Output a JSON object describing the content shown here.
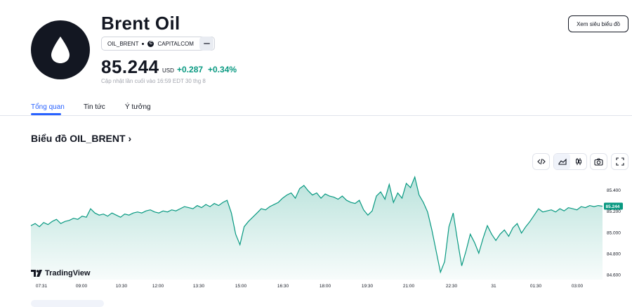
{
  "header": {
    "title": "Brent Oil",
    "symbol": "OIL_BRENT",
    "exchange": "CAPITALCOM",
    "price": "85.244",
    "currency": "USD",
    "change": "+0.287",
    "change_percent": "+0.34%",
    "updated": "Cập nhật lần cuối vào 16:59 EDT 30 thg 8",
    "view_button": "Xem siêu biểu đồ",
    "logo_icon": "oil-drop-icon"
  },
  "tabs": [
    {
      "label": "Tổng quan",
      "active": true
    },
    {
      "label": "Tin tức",
      "active": false
    },
    {
      "label": "Ý tưởng",
      "active": false
    }
  ],
  "chart_section": {
    "title": "Biểu đồ OIL_BRENT",
    "tools": [
      "embed-code-icon",
      "area-chart-icon",
      "candles-icon",
      "camera-icon",
      "fullscreen-icon"
    ],
    "brand": "TradingView"
  },
  "colors": {
    "accent": "#2962ff",
    "positive": "#089981",
    "line": "#089981"
  },
  "chart_data": {
    "type": "area",
    "x_ticks": [
      "07:31",
      "09:00",
      "10:30",
      "12:00",
      "13:30",
      "15:00",
      "16:30",
      "18:00",
      "19:30",
      "21:00",
      "22:30",
      "31",
      "01:30",
      "03:00"
    ],
    "y_ticks": [
      "85.400",
      "85.200",
      "85.000",
      "84.800",
      "84.600"
    ],
    "ylim": [
      84.55,
      85.5
    ],
    "last_label": "85.244",
    "series": [
      {
        "values": [
          85.06,
          85.08,
          85.05,
          85.09,
          85.07,
          85.1,
          85.12,
          85.08,
          85.1,
          85.11,
          85.13,
          85.12,
          85.15,
          85.14,
          85.22,
          85.18,
          85.16,
          85.17,
          85.15,
          85.18,
          85.16,
          85.14,
          85.17,
          85.16,
          85.18,
          85.19,
          85.18,
          85.2,
          85.21,
          85.19,
          85.18,
          85.2,
          85.19,
          85.21,
          85.2,
          85.22,
          85.24,
          85.23,
          85.22,
          85.25,
          85.23,
          85.26,
          85.24,
          85.27,
          85.25,
          85.28,
          85.3,
          85.18,
          84.98,
          84.88,
          85.05,
          85.1,
          85.14,
          85.18,
          85.22,
          85.21,
          85.24,
          85.26,
          85.28,
          85.32,
          85.35,
          85.37,
          85.32,
          85.41,
          85.44,
          85.39,
          85.35,
          85.37,
          85.32,
          85.36,
          85.34,
          85.33,
          85.31,
          85.34,
          85.3,
          85.28,
          85.27,
          85.3,
          85.21,
          85.16,
          85.2,
          85.34,
          85.38,
          85.31,
          85.45,
          85.28,
          85.37,
          85.32,
          85.46,
          85.42,
          85.52,
          85.35,
          85.28,
          85.19,
          85.02,
          84.82,
          84.62,
          84.72,
          85.05,
          85.18,
          84.92,
          84.68,
          84.82,
          84.98,
          84.9,
          84.8,
          84.94,
          85.06,
          84.98,
          84.92,
          84.98,
          85.02,
          84.96,
          85.04,
          85.08,
          84.99,
          85.05,
          85.1,
          85.16,
          85.22,
          85.19,
          85.2,
          85.21,
          85.19,
          85.22,
          85.2,
          85.23,
          85.22,
          85.21,
          85.24,
          85.23,
          85.25,
          85.24,
          85.25,
          85.244
        ]
      }
    ]
  }
}
